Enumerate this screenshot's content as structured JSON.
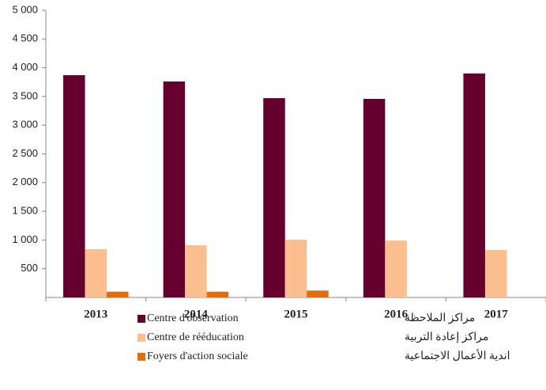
{
  "chart_data": {
    "type": "bar",
    "categories": [
      "2013",
      "2014",
      "2015",
      "2016",
      "2017"
    ],
    "series": [
      {
        "name": "Centre d'observation",
        "name_ar": "مراكز الملاحظة",
        "color": "#66002f",
        "values": [
          3870,
          3760,
          3470,
          3457,
          3900
        ]
      },
      {
        "name": "Centre de rééducation",
        "name_ar": "مراكز إعادة التربية",
        "color": "#fbbf8f",
        "values": [
          840,
          910,
          1005,
          990,
          826
        ]
      },
      {
        "name": "Foyers d'action sociale",
        "name_ar": "اندية الأعمال الاجتماعية",
        "color": "#e46c0a",
        "values": [
          100,
          100,
          120,
          null,
          null
        ]
      }
    ],
    "ylim": [
      0,
      5000
    ],
    "yticks": [
      {
        "value": 500,
        "label": "500"
      },
      {
        "value": 1000,
        "label": "1 000"
      },
      {
        "value": 1500,
        "label": "1 500"
      },
      {
        "value": 2000,
        "label": "2 000"
      },
      {
        "value": 2500,
        "label": "2 500"
      },
      {
        "value": 3000,
        "label": "3 000"
      },
      {
        "value": 3500,
        "label": "3 500"
      },
      {
        "value": 4000,
        "label": "4 000"
      },
      {
        "value": 4500,
        "label": "4 500"
      },
      {
        "value": 5000,
        "label": "5 000"
      }
    ],
    "grid": false
  }
}
